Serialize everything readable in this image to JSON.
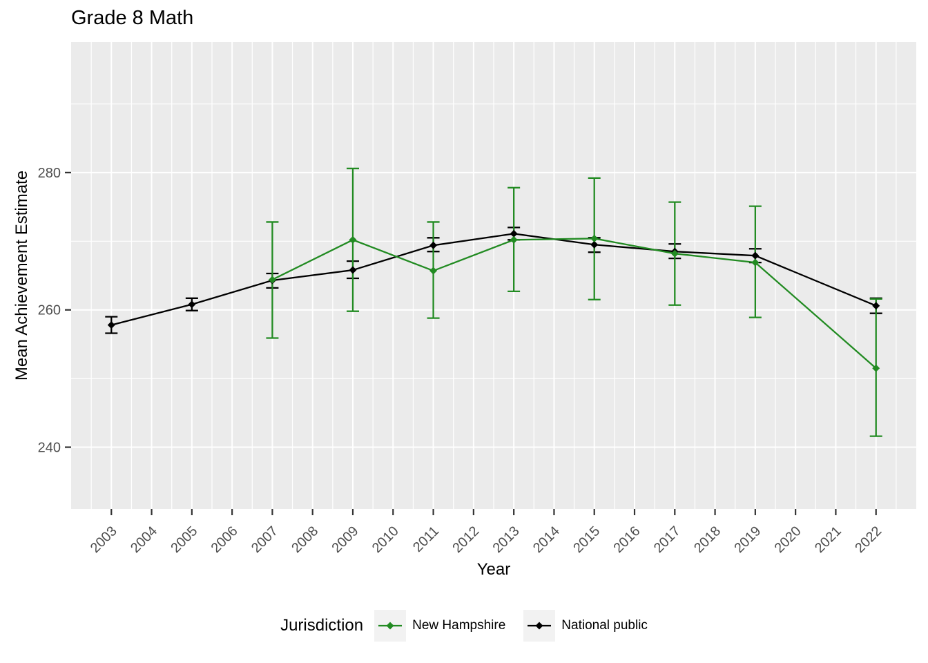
{
  "chart_data": {
    "type": "line",
    "title": "Grade 8 Math",
    "xlabel": "Year",
    "ylabel": "Mean Achievement Estimate",
    "legend_title": "Jurisdiction",
    "legend_position": "bottom",
    "grid": true,
    "panel_bg": "#EBEBEB",
    "grid_color": "#FFFFFF",
    "tick_color": "#333333",
    "tick_label_color": "#4d4d4d",
    "x_ticks": [
      2003,
      2004,
      2005,
      2006,
      2007,
      2008,
      2009,
      2010,
      2011,
      2012,
      2013,
      2014,
      2015,
      2016,
      2017,
      2018,
      2019,
      2020,
      2021,
      2022
    ],
    "y_ticks": [
      240,
      260,
      280
    ],
    "y_minor": [
      250,
      270,
      290
    ],
    "xlim": [
      2002.0,
      2023.0
    ],
    "ylim": [
      231,
      299
    ],
    "series": [
      {
        "name": "New Hampshire",
        "color": "#228B22",
        "x": [
          2007,
          2009,
          2011,
          2013,
          2015,
          2017,
          2019,
          2022
        ],
        "y": [
          264.4,
          270.2,
          265.7,
          270.2,
          270.4,
          268.2,
          266.9,
          251.5
        ],
        "ci_low": [
          255.9,
          259.8,
          258.8,
          262.7,
          261.5,
          260.7,
          258.9,
          241.6
        ],
        "ci_high": [
          272.8,
          280.6,
          272.8,
          277.8,
          279.2,
          275.7,
          275.1,
          261.6
        ]
      },
      {
        "name": "National public",
        "color": "#000000",
        "x": [
          2003,
          2005,
          2007,
          2009,
          2011,
          2013,
          2015,
          2017,
          2019,
          2022
        ],
        "y": [
          257.8,
          260.8,
          264.3,
          265.8,
          269.4,
          271.1,
          269.5,
          268.5,
          267.9,
          260.6
        ],
        "ci_low": [
          256.6,
          259.9,
          263.2,
          264.6,
          268.5,
          270.2,
          268.4,
          267.5,
          266.9,
          259.5
        ],
        "ci_high": [
          259.0,
          261.7,
          265.3,
          267.1,
          270.5,
          272.0,
          270.5,
          269.6,
          268.9,
          261.7
        ]
      }
    ]
  }
}
